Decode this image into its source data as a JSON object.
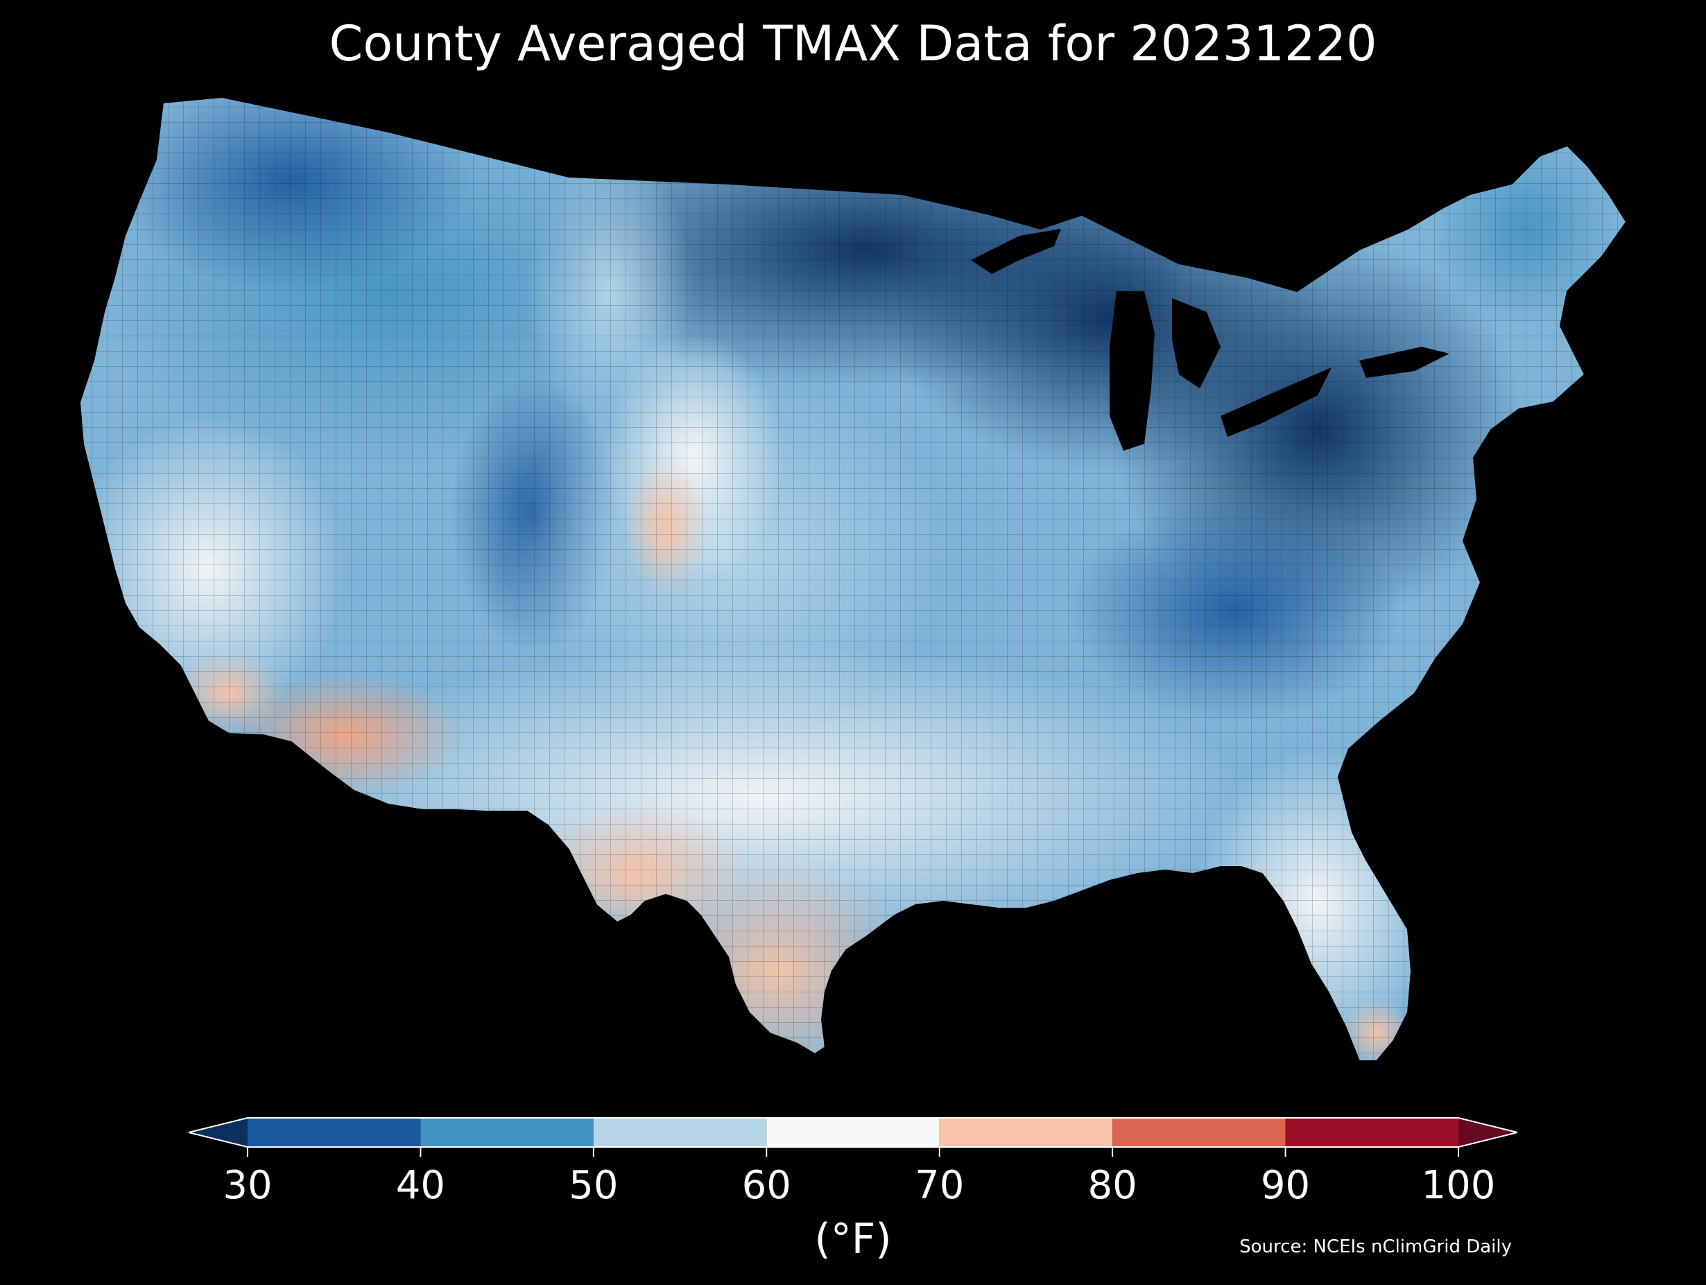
{
  "title": "County Averaged TMAX Data for 20231220",
  "colorbar": {
    "label": "(°F)",
    "ticks": [
      "30",
      "40",
      "50",
      "60",
      "70",
      "80",
      "90",
      "100"
    ],
    "bins": [
      {
        "min": 30,
        "max": 40,
        "color": "#1a59a0"
      },
      {
        "min": 40,
        "max": 50,
        "color": "#4393c3"
      },
      {
        "min": 50,
        "max": 60,
        "color": "#b6d6e8"
      },
      {
        "min": 60,
        "max": 70,
        "color": "#f7f7f7"
      },
      {
        "min": 70,
        "max": 80,
        "color": "#f8c3a6"
      },
      {
        "min": 80,
        "max": 90,
        "color": "#dd6651"
      },
      {
        "min": 90,
        "max": 100,
        "color": "#9b0f28"
      }
    ],
    "under_color": "#0b305f",
    "over_color": "#670a21",
    "extend": "both"
  },
  "source": "Source: NCEIs nClimGrid Daily",
  "map": {
    "region": "Contiguous United States",
    "unit": "county",
    "variable": "TMAX",
    "background": "#000000"
  }
}
